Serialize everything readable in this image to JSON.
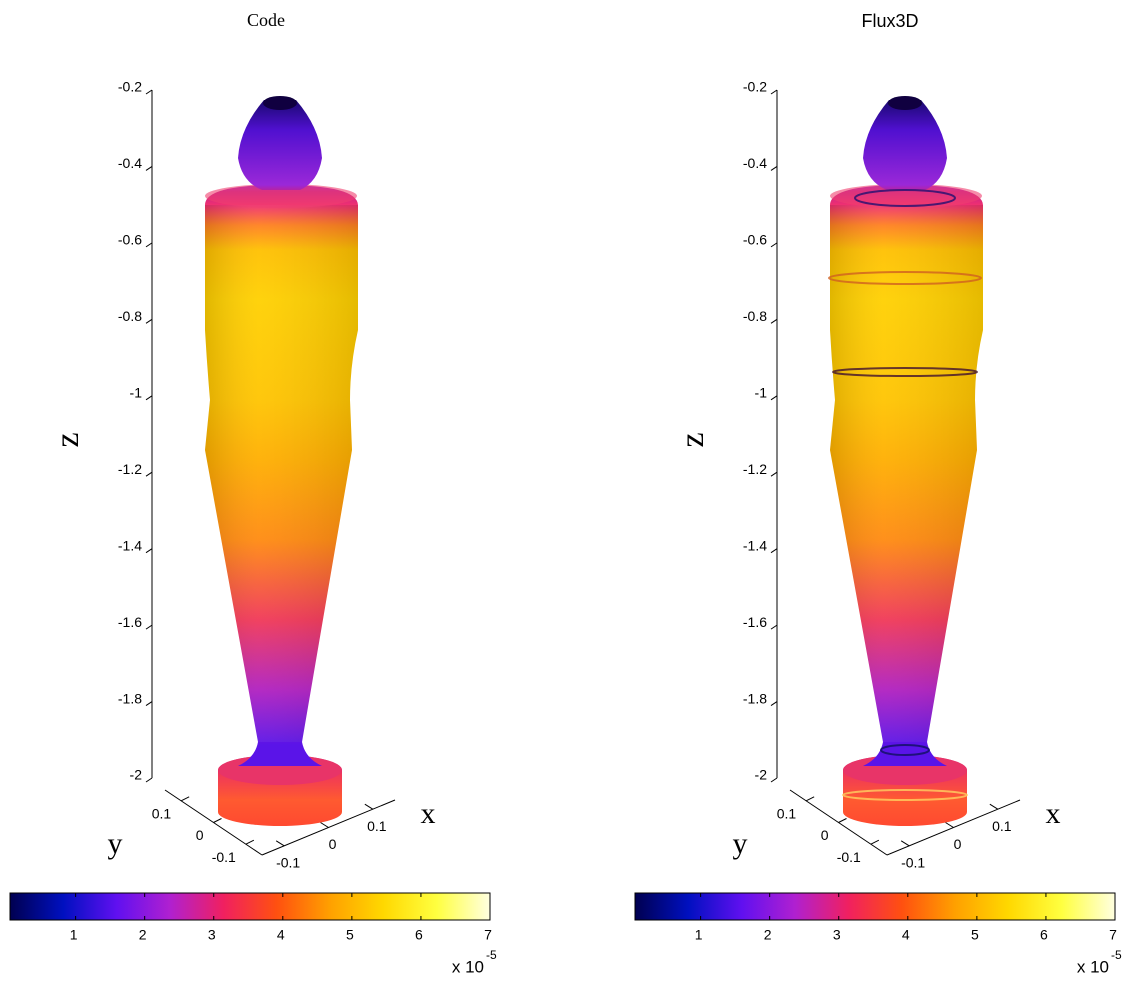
{
  "chart_data": [
    {
      "type": "surface3d",
      "title": "Code",
      "title_font": "serif",
      "zlabel": "z",
      "xlabel": "x",
      "ylabel": "y",
      "zlim": [
        -2,
        -0.2
      ],
      "zticks": [
        -0.2,
        -0.4,
        -0.6,
        -0.8,
        -1,
        -1.2,
        -1.4,
        -1.6,
        -1.8,
        -2
      ],
      "xlim": [
        -0.15,
        0.15
      ],
      "xticks": [
        -0.1,
        0,
        0.1
      ],
      "ylim": [
        -0.15,
        0.15
      ],
      "yticks": [
        -0.1,
        0,
        0.1
      ],
      "colorbar": {
        "lim": [
          0.05,
          7
        ],
        "ticks": [
          1,
          2,
          3,
          4,
          5,
          6,
          7
        ],
        "multiplier": "x 10",
        "exponent": "-5",
        "colormap": [
          "#000050",
          "#0010c0",
          "#6010f0",
          "#b020d0",
          "#f02060",
          "#ff5010",
          "#ffa000",
          "#ffd800",
          "#ffff40",
          "#ffffe0"
        ]
      }
    },
    {
      "type": "surface3d",
      "title": "Flux3D",
      "title_font": "sans-serif",
      "zlabel": "z",
      "xlabel": "x",
      "ylabel": "y",
      "zlim": [
        -2,
        -0.2
      ],
      "zticks": [
        -0.2,
        -0.4,
        -0.6,
        -0.8,
        -1,
        -1.2,
        -1.4,
        -1.6,
        -1.8,
        -2
      ],
      "xlim": [
        -0.15,
        0.15
      ],
      "xticks": [
        -0.1,
        0,
        0.1
      ],
      "ylim": [
        -0.15,
        0.15
      ],
      "yticks": [
        -0.1,
        0,
        0.1
      ],
      "colorbar": {
        "lim": [
          0.05,
          7
        ],
        "ticks": [
          1,
          2,
          3,
          4,
          5,
          6,
          7
        ],
        "multiplier": "x 10",
        "exponent": "-5",
        "colormap": [
          "#000050",
          "#0010c0",
          "#6010f0",
          "#b020d0",
          "#f02060",
          "#ff5010",
          "#ffa000",
          "#ffd800",
          "#ffff40",
          "#ffffe0"
        ]
      }
    }
  ]
}
